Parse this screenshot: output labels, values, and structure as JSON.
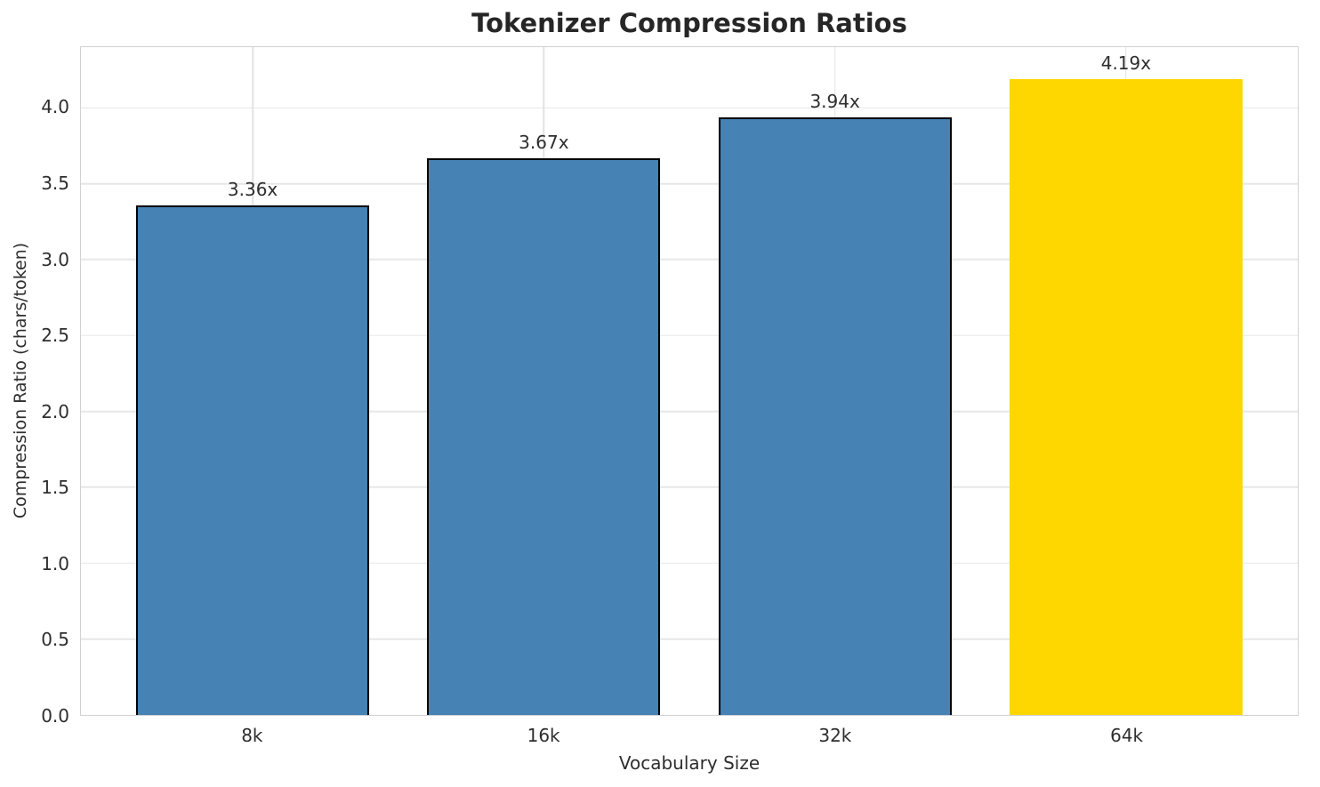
{
  "chart_data": {
    "type": "bar",
    "title": "Tokenizer Compression Ratios",
    "xlabel": "Vocabulary Size",
    "ylabel": "Compression Ratio (chars/token)",
    "categories": [
      "8k",
      "16k",
      "32k",
      "64k"
    ],
    "values": [
      3.36,
      3.67,
      3.94,
      4.19
    ],
    "bar_labels": [
      "3.36x",
      "3.67x",
      "3.94x",
      "4.19x"
    ],
    "ylim": [
      0,
      4.4
    ],
    "yticks": [
      0.0,
      0.5,
      1.0,
      1.5,
      2.0,
      2.5,
      3.0,
      3.5,
      4.0
    ],
    "ytick_labels": [
      "0.0",
      "0.5",
      "1.0",
      "1.5",
      "2.0",
      "2.5",
      "3.0",
      "3.5",
      "4.0"
    ],
    "grid": true,
    "legend": "none",
    "bar_colors": [
      "#4682B4",
      "#4682B4",
      "#4682B4",
      "#FFD700"
    ],
    "bar_edge_colors": [
      "#000000",
      "#000000",
      "#000000",
      "none"
    ],
    "base_color": "#4682B4",
    "highlight_color": "#FFD700",
    "background_color": "#ffffff"
  }
}
